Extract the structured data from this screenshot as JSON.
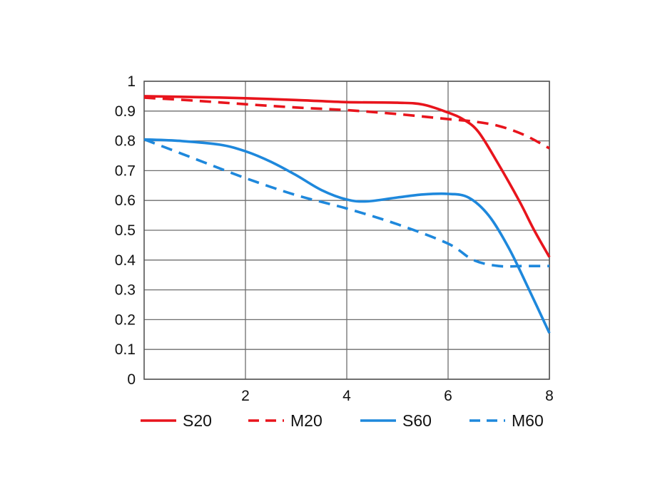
{
  "chart_data": {
    "type": "line",
    "title": "",
    "xlabel": "",
    "ylabel": "",
    "xlim": [
      0,
      8
    ],
    "ylim": [
      0,
      1
    ],
    "xticks": [
      "2",
      "4",
      "6",
      "8"
    ],
    "yticks": [
      "0",
      "0.1",
      "0.2",
      "0.3",
      "0.4",
      "0.5",
      "0.6",
      "0.7",
      "0.8",
      "0.9",
      "1"
    ],
    "grid": true,
    "legend": "bottom",
    "series": [
      {
        "name": "S20",
        "color": "#e8141c",
        "dash": "solid",
        "points": [
          [
            0,
            0.95
          ],
          [
            1,
            0.947
          ],
          [
            2,
            0.943
          ],
          [
            3,
            0.937
          ],
          [
            4,
            0.93
          ],
          [
            5,
            0.928
          ],
          [
            5.5,
            0.922
          ],
          [
            6,
            0.895
          ],
          [
            6.3,
            0.872
          ],
          [
            6.6,
            0.83
          ],
          [
            7,
            0.72
          ],
          [
            7.4,
            0.6
          ],
          [
            7.7,
            0.5
          ],
          [
            8,
            0.41
          ]
        ]
      },
      {
        "name": "M20",
        "color": "#e8141c",
        "dash": "dashed",
        "points": [
          [
            0,
            0.945
          ],
          [
            1,
            0.935
          ],
          [
            2,
            0.923
          ],
          [
            3,
            0.912
          ],
          [
            4,
            0.903
          ],
          [
            5,
            0.89
          ],
          [
            6,
            0.873
          ],
          [
            6.5,
            0.865
          ],
          [
            7,
            0.85
          ],
          [
            7.5,
            0.82
          ],
          [
            8,
            0.775
          ]
        ]
      },
      {
        "name": "S60",
        "color": "#1e88dc",
        "dash": "solid",
        "points": [
          [
            0,
            0.805
          ],
          [
            0.7,
            0.8
          ],
          [
            1.5,
            0.787
          ],
          [
            2,
            0.765
          ],
          [
            2.5,
            0.73
          ],
          [
            3,
            0.685
          ],
          [
            3.5,
            0.635
          ],
          [
            4,
            0.603
          ],
          [
            4.4,
            0.597
          ],
          [
            5,
            0.61
          ],
          [
            5.5,
            0.62
          ],
          [
            6,
            0.622
          ],
          [
            6.4,
            0.61
          ],
          [
            6.8,
            0.55
          ],
          [
            7.2,
            0.44
          ],
          [
            7.6,
            0.3
          ],
          [
            8,
            0.155
          ]
        ]
      },
      {
        "name": "M60",
        "color": "#1e88dc",
        "dash": "dashed",
        "points": [
          [
            0,
            0.805
          ],
          [
            1,
            0.74
          ],
          [
            2,
            0.675
          ],
          [
            3,
            0.618
          ],
          [
            4,
            0.573
          ],
          [
            5,
            0.52
          ],
          [
            6,
            0.455
          ],
          [
            6.5,
            0.4
          ],
          [
            7,
            0.38
          ],
          [
            7.5,
            0.38
          ],
          [
            8,
            0.38
          ]
        ]
      }
    ]
  }
}
